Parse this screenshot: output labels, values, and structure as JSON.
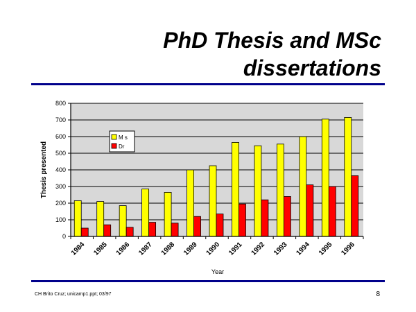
{
  "slide": {
    "title_line1": "PhD Thesis and MSc",
    "title_line2": "dissertations",
    "footer_left": "CH Brito Cruz; unicamp1.ppt; 03/97",
    "page_number": "8"
  },
  "colors": {
    "rule": "#00008b",
    "plot_background": "#d8d8d8",
    "ms_bar": "#ffff00",
    "dr_bar": "#ff0000"
  },
  "chart_data": {
    "type": "bar",
    "title": "",
    "xlabel": "Year",
    "ylabel": "Thesis presented",
    "ylim": [
      0,
      800
    ],
    "yticks": [
      0,
      100,
      200,
      300,
      400,
      500,
      600,
      700,
      800
    ],
    "grid": true,
    "legend_position": "upper-left inside plot",
    "categories": [
      "1984",
      "1985",
      "1986",
      "1987",
      "1988",
      "1989",
      "1990",
      "1991",
      "1992",
      "1993",
      "1994",
      "1995",
      "1996"
    ],
    "series": [
      {
        "name": "M s",
        "color": "#ffff00",
        "values": [
          215,
          210,
          185,
          285,
          265,
          400,
          425,
          565,
          545,
          555,
          600,
          705,
          715
        ]
      },
      {
        "name": "Dr",
        "color": "#ff0000",
        "values": [
          50,
          70,
          55,
          85,
          80,
          120,
          135,
          195,
          220,
          240,
          310,
          300,
          365
        ]
      }
    ]
  }
}
